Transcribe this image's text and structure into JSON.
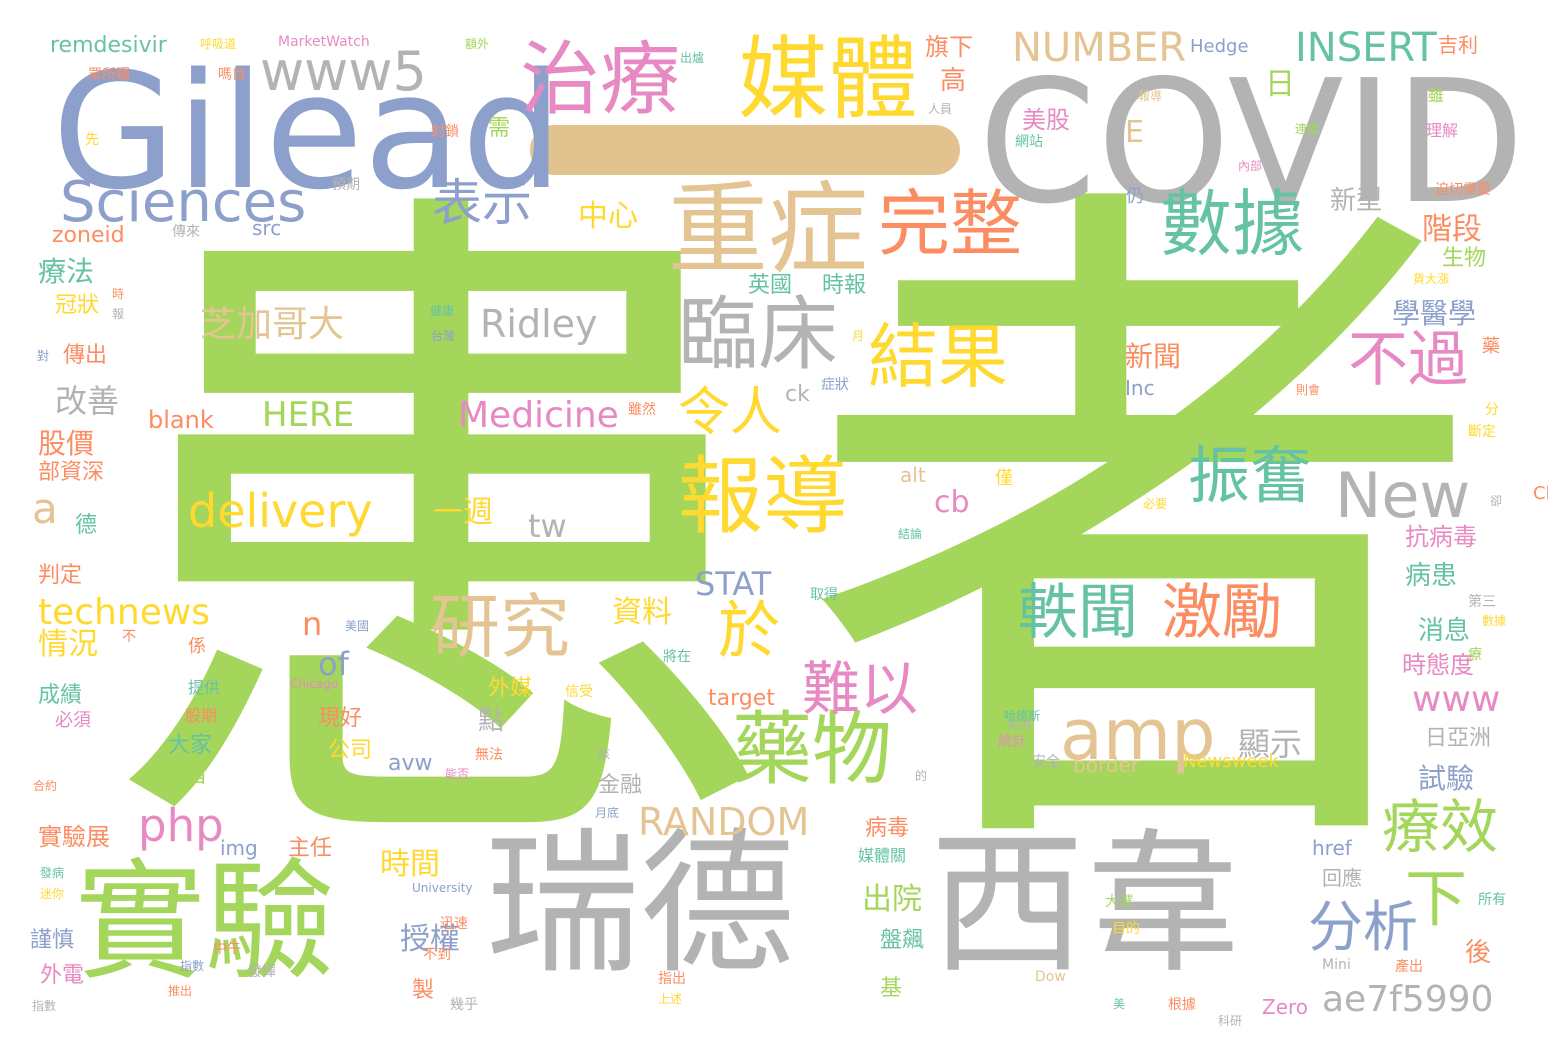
{
  "colors": {
    "green": "#a3d65a",
    "gray": "#b3b3b3",
    "blue": "#8da0cb",
    "tan": "#e5c494",
    "teal": "#66c2a5",
    "yellow": "#ffd92f",
    "orange": "#fc8d62",
    "pink": "#e78ac3",
    "dash": "#e2c38f"
  },
  "words": [
    {
      "text": "患",
      "color": "green"
    },
    {
      "text": "者",
      "color": "green"
    },
    {
      "text": "COVID",
      "color": "gray"
    },
    {
      "text": "Gilead",
      "color": "blue"
    },
    {
      "text": "瑞德",
      "color": "gray"
    },
    {
      "text": "西韋",
      "color": "gray"
    },
    {
      "text": "實驗",
      "color": "green"
    },
    {
      "text": "重症",
      "color": "tan"
    },
    {
      "text": "媒體",
      "color": "yellow"
    },
    {
      "text": "治療",
      "color": "pink"
    },
    {
      "text": "臨床",
      "color": "gray"
    },
    {
      "text": "數據",
      "color": "teal"
    },
    {
      "text": "完整",
      "color": "orange"
    },
    {
      "text": "報導",
      "color": "yellow"
    },
    {
      "text": "結果",
      "color": "yellow"
    },
    {
      "text": "藥物",
      "color": "green"
    },
    {
      "text": "Sciences",
      "color": "blue"
    },
    {
      "text": "www5",
      "color": "gray"
    },
    {
      "text": "New",
      "color": "gray"
    },
    {
      "text": "amp",
      "color": "tan"
    },
    {
      "text": "研究",
      "color": "tan"
    },
    {
      "text": "振奮",
      "color": "teal"
    },
    {
      "text": "不過",
      "color": "pink"
    },
    {
      "text": "療效",
      "color": "green"
    },
    {
      "text": "下",
      "color": "green"
    },
    {
      "text": "分析",
      "color": "blue"
    },
    {
      "text": "軼聞",
      "color": "teal"
    },
    {
      "text": "激勵",
      "color": "orange"
    },
    {
      "text": "於",
      "color": "yellow"
    },
    {
      "text": "難以",
      "color": "pink"
    },
    {
      "text": "令人",
      "color": "yellow"
    },
    {
      "text": "表示",
      "color": "blue"
    },
    {
      "text": "NUMBER",
      "color": "tan"
    },
    {
      "text": "INSERT",
      "color": "teal"
    },
    {
      "text": "Medicine",
      "color": "pink"
    },
    {
      "text": "delivery",
      "color": "yellow"
    },
    {
      "text": "Ridley",
      "color": "gray"
    },
    {
      "text": "芝加哥大",
      "color": "tan"
    },
    {
      "text": "technews",
      "color": "yellow"
    },
    {
      "text": "php",
      "color": "pink"
    },
    {
      "text": "RANDOM",
      "color": "tan"
    },
    {
      "text": "ae7f5990",
      "color": "gray"
    },
    {
      "text": "HERE",
      "color": "green"
    },
    {
      "text": "blank",
      "color": "orange"
    },
    {
      "text": "remdesivir",
      "color": "teal"
    },
    {
      "text": "zoneid",
      "color": "orange"
    },
    {
      "text": "STAT",
      "color": "blue"
    },
    {
      "text": "www",
      "color": "pink"
    },
    {
      "text": "tw",
      "color": "gray"
    },
    {
      "text": "cb",
      "color": "pink"
    },
    {
      "text": "of",
      "color": "blue"
    },
    {
      "text": "n",
      "color": "orange"
    },
    {
      "text": "a",
      "color": "tan"
    },
    {
      "text": "E",
      "color": "tan"
    },
    {
      "text": "日",
      "color": "green"
    },
    {
      "text": "高",
      "color": "orange"
    },
    {
      "text": "旗下",
      "color": "orange"
    },
    {
      "text": "美股",
      "color": "pink"
    },
    {
      "text": "中心",
      "color": "yellow"
    },
    {
      "text": "一週",
      "color": "yellow"
    },
    {
      "text": "階段",
      "color": "orange"
    },
    {
      "text": "生物",
      "color": "green"
    },
    {
      "text": "學醫學",
      "color": "blue"
    },
    {
      "text": "新聞",
      "color": "orange"
    },
    {
      "text": "英國",
      "color": "teal"
    },
    {
      "text": "時報",
      "color": "teal"
    },
    {
      "text": "療法",
      "color": "teal"
    },
    {
      "text": "冠狀",
      "color": "yellow"
    },
    {
      "text": "傳出",
      "color": "orange"
    },
    {
      "text": "改善",
      "color": "gray"
    },
    {
      "text": "股價",
      "color": "orange"
    },
    {
      "text": "部資深",
      "color": "orange"
    },
    {
      "text": "抗病毒",
      "color": "pink"
    },
    {
      "text": "病患",
      "color": "teal"
    },
    {
      "text": "消息",
      "color": "teal"
    },
    {
      "text": "時態度",
      "color": "pink"
    },
    {
      "text": "顯示",
      "color": "gray"
    },
    {
      "text": "日亞洲",
      "color": "gray"
    },
    {
      "text": "試驗",
      "color": "blue"
    },
    {
      "text": "資料",
      "color": "yellow"
    },
    {
      "text": "外媒",
      "color": "yellow"
    },
    {
      "text": "點",
      "color": "gray"
    },
    {
      "text": "現好",
      "color": "orange"
    },
    {
      "text": "公司",
      "color": "yellow"
    },
    {
      "text": "大家",
      "color": "teal"
    },
    {
      "text": "期指",
      "color": "green"
    },
    {
      "text": "金融",
      "color": "gray"
    },
    {
      "text": "病毒",
      "color": "orange"
    },
    {
      "text": "主任",
      "color": "orange"
    },
    {
      "text": "時間",
      "color": "yellow"
    },
    {
      "text": "出院",
      "color": "green"
    },
    {
      "text": "授權",
      "color": "blue"
    },
    {
      "text": "盤飆",
      "color": "teal"
    },
    {
      "text": "基",
      "color": "green"
    },
    {
      "text": "製",
      "color": "orange"
    },
    {
      "text": "媒體關",
      "color": "teal"
    },
    {
      "text": "回應",
      "color": "gray"
    },
    {
      "text": "後",
      "color": "orange"
    },
    {
      "text": "新型",
      "color": "gray"
    },
    {
      "text": "成績",
      "color": "teal"
    },
    {
      "text": "情況",
      "color": "yellow"
    },
    {
      "text": "判定",
      "color": "orange"
    },
    {
      "text": "德",
      "color": "teal"
    },
    {
      "text": "實驗展",
      "color": "orange"
    },
    {
      "text": "謹慎",
      "color": "blue"
    },
    {
      "text": "外電",
      "color": "pink"
    },
    {
      "text": "img",
      "color": "blue"
    },
    {
      "text": "avw",
      "color": "blue"
    },
    {
      "text": "target",
      "color": "orange"
    },
    {
      "text": "href",
      "color": "blue"
    },
    {
      "text": "border",
      "color": "tan"
    },
    {
      "text": "Newsweek",
      "color": "yellow"
    },
    {
      "text": "Inc",
      "color": "blue"
    },
    {
      "text": "alt",
      "color": "tan"
    },
    {
      "text": "Chris",
      "color": "orange"
    },
    {
      "text": "ck",
      "color": "gray"
    },
    {
      "text": "src",
      "color": "blue"
    },
    {
      "text": "Hedge",
      "color": "blue"
    },
    {
      "text": "MarketWatch",
      "color": "pink"
    },
    {
      "text": "吉利",
      "color": "orange"
    },
    {
      "text": "Zero",
      "color": "pink"
    },
    {
      "text": "Dow",
      "color": "tan"
    },
    {
      "text": "University",
      "color": "blue"
    },
    {
      "text": "Chicago",
      "color": "pink"
    },
    {
      "text": "呼吸道",
      "color": "yellow"
    },
    {
      "text": "額外",
      "color": "green"
    },
    {
      "text": "需",
      "color": "green"
    },
    {
      "text": "仍",
      "color": "blue"
    },
    {
      "text": "僅",
      "color": "yellow"
    },
    {
      "text": "係",
      "color": "orange"
    },
    {
      "text": "提供",
      "color": "teal"
    },
    {
      "text": "股期",
      "color": "orange"
    },
    {
      "text": "必須",
      "color": "pink"
    },
    {
      "text": "理解",
      "color": "pink"
    },
    {
      "text": "雖",
      "color": "green"
    },
    {
      "text": "藥",
      "color": "orange"
    },
    {
      "text": "分",
      "color": "yellow"
    },
    {
      "text": "斷定",
      "color": "yellow"
    },
    {
      "text": "取得",
      "color": "teal"
    },
    {
      "text": "發揮",
      "color": "gray"
    },
    {
      "text": "信受",
      "color": "yellow"
    },
    {
      "text": "將在",
      "color": "teal"
    },
    {
      "text": "無法",
      "color": "orange"
    },
    {
      "text": "統計",
      "color": "pink"
    },
    {
      "text": "安全",
      "color": "gray"
    },
    {
      "text": "目的",
      "color": "yellow"
    },
    {
      "text": "大選",
      "color": "green"
    },
    {
      "text": "所有",
      "color": "teal"
    },
    {
      "text": "產出",
      "color": "orange"
    },
    {
      "text": "根據",
      "color": "orange"
    },
    {
      "text": "美",
      "color": "teal"
    },
    {
      "text": "幾乎",
      "color": "gray"
    },
    {
      "text": "指出",
      "color": "orange"
    },
    {
      "text": "上述",
      "color": "yellow"
    },
    {
      "text": "中午",
      "color": "orange"
    },
    {
      "text": "迅速",
      "color": "orange"
    },
    {
      "text": "不到",
      "color": "orange"
    },
    {
      "text": "指數",
      "color": "gray"
    },
    {
      "text": "合約",
      "color": "orange"
    },
    {
      "text": "發病",
      "color": "teal"
    },
    {
      "text": "迷你",
      "color": "yellow"
    },
    {
      "text": "月底",
      "color": "blue"
    },
    {
      "text": "的",
      "color": "gray"
    },
    {
      "text": "該",
      "color": "gray"
    },
    {
      "text": "健康",
      "color": "teal"
    },
    {
      "text": "台灣",
      "color": "blue"
    },
    {
      "text": "症狀",
      "color": "blue"
    },
    {
      "text": "月",
      "color": "yellow"
    },
    {
      "text": "則會",
      "color": "orange"
    },
    {
      "text": "必要",
      "color": "yellow"
    },
    {
      "text": "結論",
      "color": "teal"
    },
    {
      "text": "第三",
      "color": "gray"
    },
    {
      "text": "雖然",
      "color": "orange"
    },
    {
      "text": "迫切需要",
      "color": "orange"
    },
    {
      "text": "報導",
      "color": "tan"
    },
    {
      "text": "內部",
      "color": "pink"
    },
    {
      "text": "網站",
      "color": "teal"
    },
    {
      "text": "連續",
      "color": "green"
    },
    {
      "text": "出爐",
      "color": "teal"
    },
    {
      "text": "嗎目",
      "color": "orange"
    },
    {
      "text": "眾所矚",
      "color": "orange"
    },
    {
      "text": "先",
      "color": "yellow"
    },
    {
      "text": "預期",
      "color": "gray"
    },
    {
      "text": "傳來",
      "color": "gray"
    },
    {
      "text": "對",
      "color": "blue"
    },
    {
      "text": "時",
      "color": "orange"
    },
    {
      "text": "報",
      "color": "gray"
    },
    {
      "text": "人員",
      "color": "gray"
    },
    {
      "text": "封鎖",
      "color": "orange"
    },
    {
      "text": "貨大漲",
      "color": "yellow"
    },
    {
      "text": "卻",
      "color": "gray"
    },
    {
      "text": "推出",
      "color": "orange"
    },
    {
      "text": "美國",
      "color": "blue"
    },
    {
      "text": "認為",
      "color": "gray"
    },
    {
      "text": "能否",
      "color": "pink"
    },
    {
      "text": "Mini",
      "color": "gray"
    },
    {
      "text": "指數",
      "color": "blue"
    },
    {
      "text": "哈德斯",
      "color": "teal"
    },
    {
      "text": "科研",
      "color": "gray"
    },
    {
      "text": "數據",
      "color": "yellow"
    },
    {
      "text": "不",
      "color": "orange"
    },
    {
      "text": "療",
      "color": "green"
    }
  ]
}
